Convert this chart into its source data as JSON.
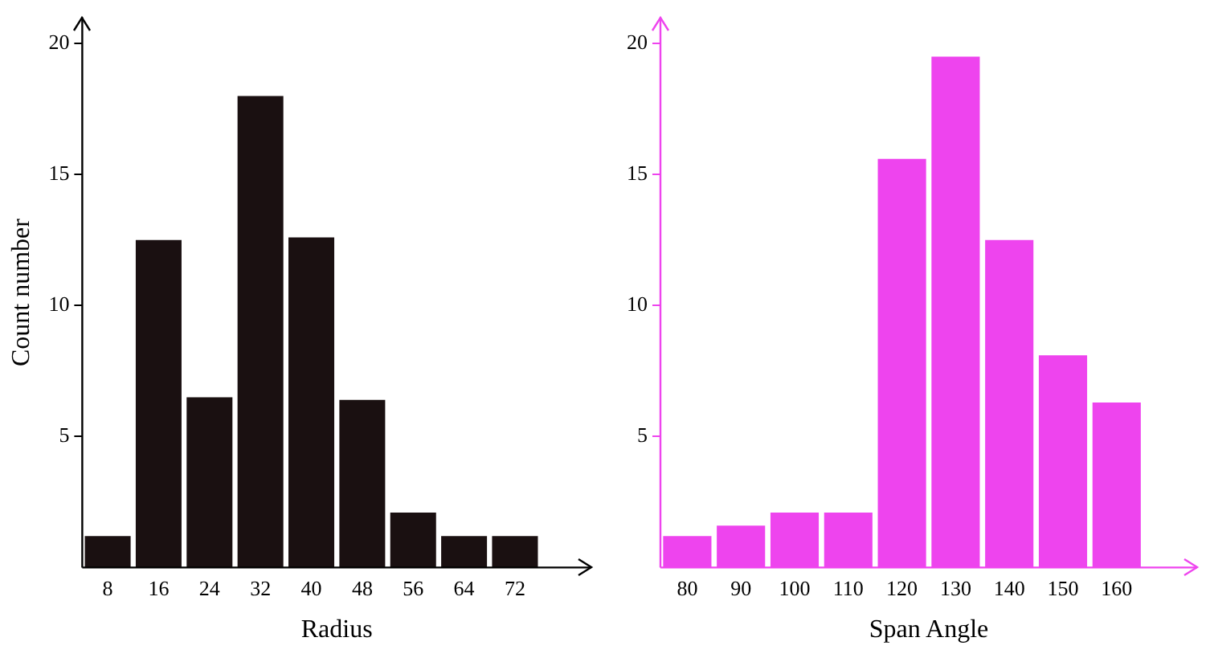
{
  "chart_data": [
    {
      "type": "bar",
      "xlabel": "Radius",
      "ylabel": "Count number",
      "categories": [
        "8",
        "16",
        "24",
        "32",
        "40",
        "48",
        "56",
        "64",
        "72"
      ],
      "values": [
        1.2,
        12.5,
        6.5,
        18,
        12.6,
        6.4,
        2.1,
        1.2,
        1.2
      ],
      "color": "#1a1011",
      "ylim": [
        0,
        21
      ],
      "yticks": [
        5,
        10,
        15,
        20
      ],
      "grid": false,
      "legend": false
    },
    {
      "type": "bar",
      "xlabel": "Span Angle",
      "categories": [
        "80",
        "90",
        "100",
        "110",
        "120",
        "130",
        "140",
        "150",
        "160"
      ],
      "values": [
        1.2,
        1.6,
        2.1,
        2.1,
        15.6,
        19.5,
        12.5,
        8.1,
        6.3
      ],
      "color": "#ee44ee",
      "ylim": [
        0,
        21
      ],
      "yticks": [
        5,
        10,
        15,
        20
      ],
      "grid": false,
      "legend": false
    }
  ]
}
